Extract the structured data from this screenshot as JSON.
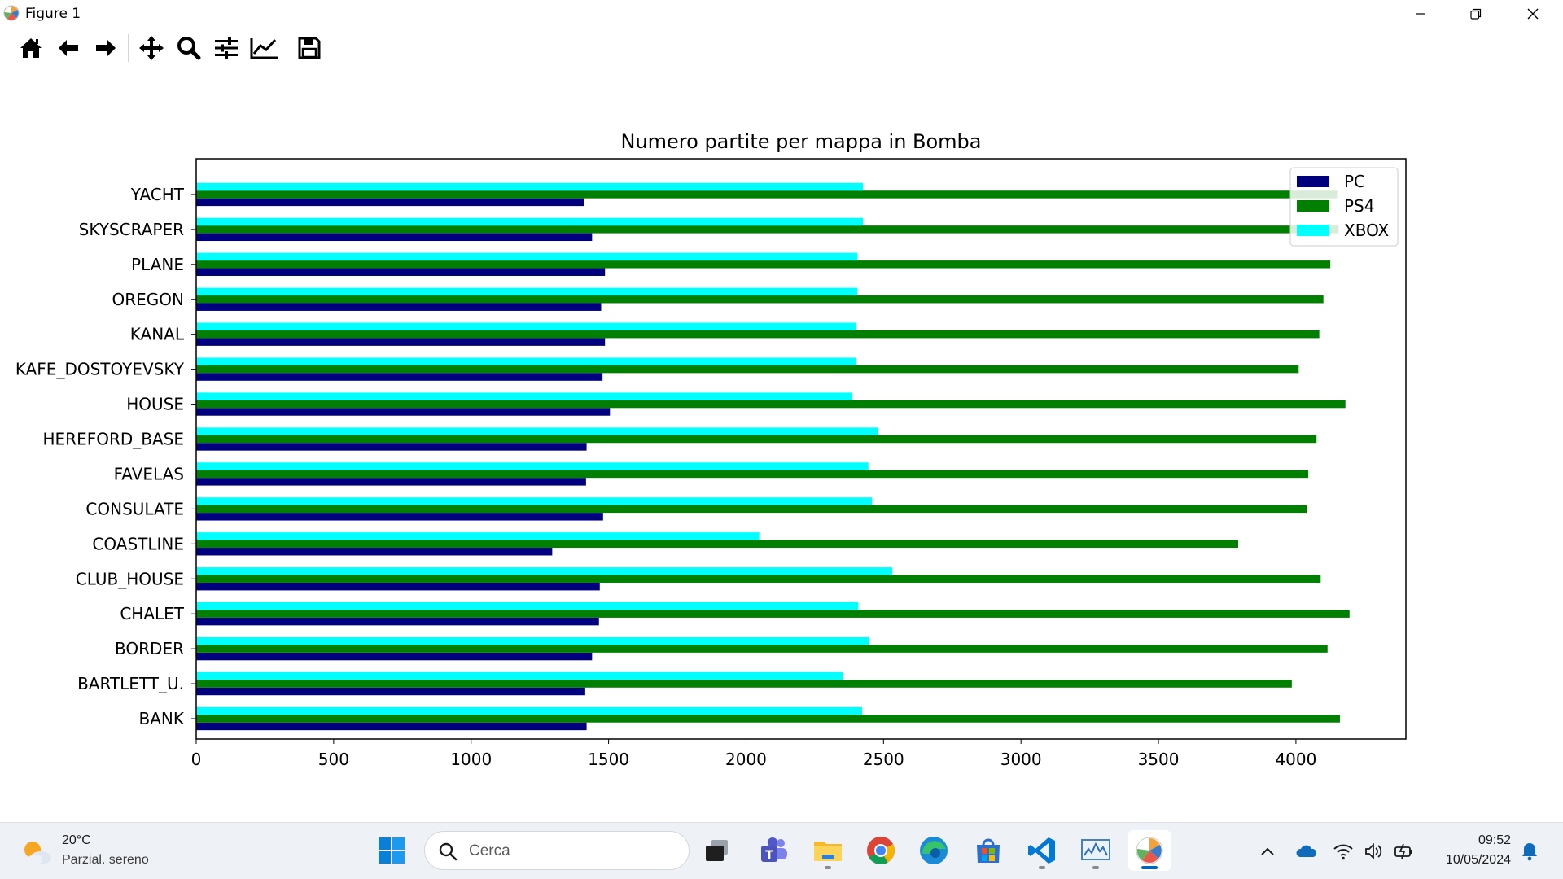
{
  "window": {
    "title": "Figure 1",
    "minimize_icon": "minimize-icon",
    "restore_icon": "restore-icon",
    "close_icon": "close-icon"
  },
  "toolbar": {
    "buttons": [
      "home-icon",
      "back-arrow-icon",
      "forward-arrow-icon",
      "pan-icon",
      "zoom-icon",
      "subplots-icon",
      "customize-icon",
      "save-icon"
    ]
  },
  "chart_data": {
    "type": "bar",
    "orientation": "horizontal",
    "title": "Numero partite per mappa in Bomba",
    "xlabel": "",
    "ylabel": "",
    "xlim": [
      0,
      4400
    ],
    "xticks": [
      "0",
      "500",
      "1000",
      "1500",
      "2000",
      "2500",
      "3000",
      "3500",
      "4000"
    ],
    "xtick_values": [
      0,
      500,
      1000,
      1500,
      2000,
      2500,
      3000,
      3500,
      4000
    ],
    "categories": [
      "BANK",
      "BARTLETT_U.",
      "BORDER",
      "CHALET",
      "CLUB_HOUSE",
      "COASTLINE",
      "CONSULATE",
      "FAVELAS",
      "HEREFORD_BASE",
      "HOUSE",
      "KAFE_DOSTOYEVSKY",
      "KANAL",
      "OREGON",
      "PLANE",
      "SKYSCRAPER",
      "YACHT"
    ],
    "series": [
      {
        "name": "PC",
        "color": "#00007f",
        "values": [
          1420,
          1415,
          1440,
          1465,
          1468,
          1295,
          1480,
          1418,
          1420,
          1505,
          1478,
          1487,
          1473,
          1487,
          1440,
          1410
        ]
      },
      {
        "name": "PS4",
        "color": "#007f00",
        "values": [
          4160,
          3985,
          4115,
          4195,
          4090,
          3790,
          4040,
          4045,
          4075,
          4180,
          4010,
          4085,
          4100,
          4125,
          4155,
          4150
        ]
      },
      {
        "name": "XBOX",
        "color": "#00ffff",
        "values": [
          2422,
          2352,
          2448,
          2408,
          2532,
          2048,
          2458,
          2445,
          2480,
          2385,
          2400,
          2400,
          2405,
          2405,
          2425,
          2425
        ]
      }
    ],
    "legend_position": "top-right",
    "grid": false
  },
  "taskbar": {
    "weather_temp": "20°C",
    "weather_desc": "Parzial. sereno",
    "search_placeholder": "Cerca",
    "apps": [
      "start-icon",
      "task-view-icon",
      "teams-icon",
      "file-explorer-icon",
      "chrome-icon",
      "edge-icon",
      "store-icon",
      "vscode-icon",
      "monitor-app-icon",
      "matplotlib-figure-icon"
    ],
    "time": "09:52",
    "date": "10/05/2024"
  }
}
